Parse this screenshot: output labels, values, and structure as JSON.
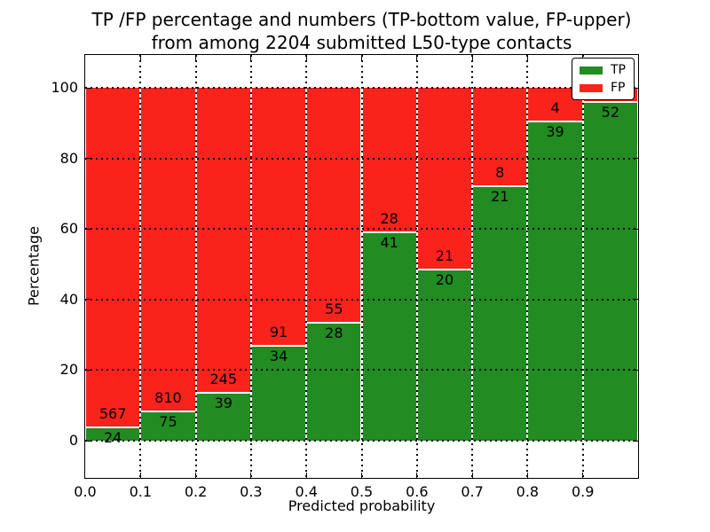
{
  "title": {
    "line1": "TP /FP percentage and numbers (TP-bottom value, FP-upper)",
    "line2": "from among 2204 submitted L50-type contacts"
  },
  "axes": {
    "xlabel": "Predicted probability",
    "ylabel": "Percentage"
  },
  "legend": {
    "position": "upper right",
    "items": [
      {
        "label": "TP",
        "color": "#228b22"
      },
      {
        "label": "FP",
        "color": "#fa231c"
      }
    ]
  },
  "colors": {
    "tp": "#228b22",
    "fp": "#fa231c",
    "grid": "#000000",
    "background": "#ffffff"
  },
  "chart_data": {
    "type": "bar",
    "stacked": true,
    "title": "TP /FP percentage and numbers (TP-bottom value, FP-upper) from among 2204 submitted L50-type contacts",
    "xlabel": "Predicted probability",
    "ylabel": "Percentage",
    "total_contacts": 2204,
    "bins": [
      "0.0-0.1",
      "0.1-0.2",
      "0.2-0.3",
      "0.3-0.4",
      "0.4-0.5",
      "0.5-0.6",
      "0.6-0.7",
      "0.7-0.8",
      "0.8-0.9",
      "0.9-1.0"
    ],
    "series": [
      {
        "name": "TP",
        "counts": [
          24,
          75,
          39,
          34,
          28,
          41,
          20,
          21,
          39,
          52
        ],
        "pct": [
          4.1,
          8.5,
          13.7,
          27.2,
          33.7,
          59.4,
          48.8,
          72.4,
          90.7,
          96.3
        ]
      },
      {
        "name": "FP",
        "counts": [
          567,
          810,
          245,
          91,
          55,
          28,
          21,
          8,
          4,
          null
        ],
        "pct": [
          95.9,
          91.5,
          86.3,
          72.8,
          66.3,
          40.6,
          51.2,
          27.6,
          9.3,
          3.7
        ]
      }
    ],
    "count_labels": {
      "tp": [
        "24",
        "75",
        "39",
        "34",
        "28",
        "41",
        "20",
        "21",
        "39",
        "52"
      ],
      "fp": [
        "567",
        "810",
        "245",
        "91",
        "55",
        "28",
        "21",
        "8",
        "4",
        ""
      ]
    },
    "xticks": [
      "0.0",
      "0.1",
      "0.2",
      "0.3",
      "0.4",
      "0.5",
      "0.6",
      "0.7",
      "0.8",
      "0.9"
    ],
    "yticks": [
      "0",
      "20",
      "40",
      "60",
      "80",
      "100"
    ],
    "xlim": [
      0.0,
      1.0
    ],
    "ylim": [
      -10.5,
      109.5
    ],
    "grid": "dotted",
    "legend_position": "upper right"
  }
}
